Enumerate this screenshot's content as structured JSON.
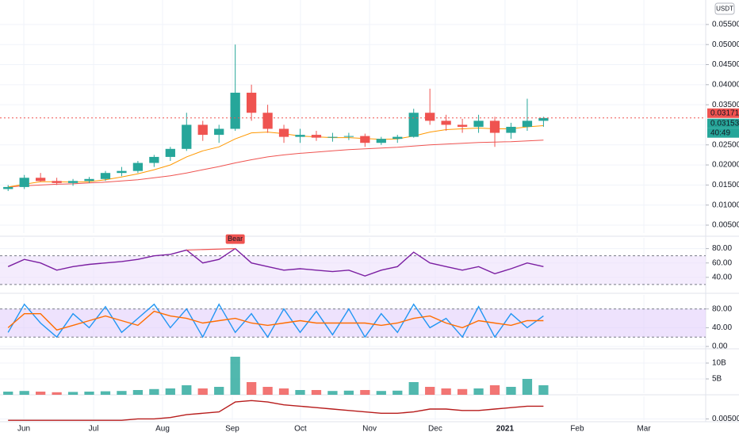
{
  "chart_data": [
    {
      "type": "candlestick",
      "unit": "USDT",
      "open": [
        0.014,
        0.0145,
        0.0168,
        0.016,
        0.0155,
        0.016,
        0.0165,
        0.018,
        0.0185,
        0.0205,
        0.022,
        0.024,
        0.03,
        0.0275,
        0.029,
        0.038,
        0.033,
        0.029,
        0.027,
        0.0275,
        0.0268,
        0.027,
        0.0272,
        0.0255,
        0.0265,
        0.027,
        0.033,
        0.031,
        0.03,
        0.0295,
        0.031,
        0.028,
        0.0295,
        0.031
      ],
      "high": [
        0.015,
        0.0175,
        0.018,
        0.0168,
        0.0165,
        0.017,
        0.0185,
        0.0195,
        0.021,
        0.0225,
        0.0245,
        0.033,
        0.031,
        0.03,
        0.05,
        0.04,
        0.035,
        0.03,
        0.029,
        0.0285,
        0.028,
        0.028,
        0.0278,
        0.027,
        0.0275,
        0.034,
        0.039,
        0.0325,
        0.0315,
        0.0325,
        0.032,
        0.0305,
        0.0365,
        0.032
      ],
      "low": [
        0.0135,
        0.014,
        0.0158,
        0.015,
        0.0148,
        0.0155,
        0.016,
        0.0172,
        0.018,
        0.0195,
        0.021,
        0.0235,
        0.026,
        0.0255,
        0.0285,
        0.031,
        0.028,
        0.0255,
        0.0255,
        0.026,
        0.0258,
        0.0262,
        0.0245,
        0.025,
        0.0255,
        0.0268,
        0.03,
        0.0285,
        0.028,
        0.028,
        0.0245,
        0.0265,
        0.0285,
        0.0295
      ],
      "close": [
        0.0145,
        0.0168,
        0.016,
        0.0155,
        0.016,
        0.0165,
        0.018,
        0.0185,
        0.0205,
        0.022,
        0.024,
        0.03,
        0.0275,
        0.029,
        0.038,
        0.033,
        0.029,
        0.027,
        0.0275,
        0.0268,
        0.027,
        0.0272,
        0.0255,
        0.0265,
        0.027,
        0.033,
        0.031,
        0.03,
        0.0295,
        0.031,
        0.028,
        0.0295,
        0.031,
        0.0317
      ],
      "up_color": "#26a69a",
      "down_color": "#ef5350",
      "ma": [
        {
          "color": "#ef5350",
          "values": [
            0.0145,
            0.0148,
            0.015,
            0.0152,
            0.0153,
            0.0155,
            0.0157,
            0.016,
            0.0163,
            0.0168,
            0.0173,
            0.018,
            0.0188,
            0.0196,
            0.0205,
            0.0213,
            0.022,
            0.0225,
            0.0229,
            0.0232,
            0.0235,
            0.0238,
            0.024,
            0.0242,
            0.0244,
            0.0247,
            0.025,
            0.0252,
            0.0254,
            0.0256,
            0.0257,
            0.0258,
            0.026,
            0.0262
          ]
        },
        {
          "color": "#ff9800",
          "values": [
            0.0145,
            0.0152,
            0.0158,
            0.0158,
            0.0157,
            0.0158,
            0.0163,
            0.017,
            0.0178,
            0.0188,
            0.02,
            0.022,
            0.0235,
            0.0245,
            0.0265,
            0.028,
            0.0282,
            0.0278,
            0.0272,
            0.027,
            0.0268,
            0.0268,
            0.0266,
            0.0264,
            0.0265,
            0.0272,
            0.0282,
            0.0288,
            0.029,
            0.0292,
            0.029,
            0.029,
            0.0295,
            0.0298
          ]
        }
      ],
      "xlim": [
        -0.5,
        43
      ],
      "xticks": [
        {
          "value": 0.97,
          "label": "Jun"
        },
        {
          "value": 5.27,
          "label": "Jul"
        },
        {
          "value": 9.52,
          "label": "Aug"
        },
        {
          "value": 13.82,
          "label": "Sep"
        },
        {
          "value": 18.02,
          "label": "Oct"
        },
        {
          "value": 22.28,
          "label": "Nov"
        },
        {
          "value": 26.33,
          "label": "Dec"
        },
        {
          "value": 30.63,
          "label": "2021"
        },
        {
          "value": 35.08,
          "label": "Feb"
        },
        {
          "value": 39.19,
          "label": "Mar"
        }
      ],
      "ylim": [
        0.00263,
        0.0611
      ],
      "yticks": [
        {
          "value": 0.055,
          "label": "0.05500"
        },
        {
          "value": 0.05,
          "label": "0.05000"
        },
        {
          "value": 0.045,
          "label": "0.04500"
        },
        {
          "value": 0.04,
          "label": "0.04000"
        },
        {
          "value": 0.035,
          "label": "0.03500"
        },
        {
          "value": 0.025,
          "label": "0.02500"
        },
        {
          "value": 0.02,
          "label": "0.02000"
        },
        {
          "value": 0.015,
          "label": "0.01500"
        },
        {
          "value": 0.01,
          "label": "0.01000"
        },
        {
          "value": 0.005,
          "label": "0.00500"
        }
      ],
      "price_labels": [
        {
          "value": 0.03171,
          "label": "0.03171",
          "color": "#ef5350"
        },
        {
          "value": 0.03153,
          "label": "0.03153",
          "color": "#26a69a"
        }
      ],
      "countdown": "40:49"
    },
    {
      "type": "line",
      "annotation": "Bear",
      "band": [
        30,
        70
      ],
      "band_color": "#ede0fb",
      "series": [
        {
          "color": "#7b1fa2",
          "values": [
            55,
            65,
            60,
            50,
            55,
            58,
            60,
            62,
            65,
            70,
            72,
            78,
            60,
            65,
            80,
            60,
            55,
            50,
            52,
            50,
            48,
            50,
            42,
            50,
            55,
            75,
            60,
            55,
            50,
            55,
            45,
            52,
            60,
            55
          ]
        }
      ],
      "ylim": [
        20,
        95
      ],
      "yticks": [
        {
          "value": 80,
          "label": "80.00"
        },
        {
          "value": 60,
          "label": "60.00"
        },
        {
          "value": 40,
          "label": "40.00"
        }
      ]
    },
    {
      "type": "line",
      "band": [
        20,
        80
      ],
      "band_color": "#e3cffb",
      "series": [
        {
          "color": "#2196f3",
          "values": [
            30,
            90,
            50,
            20,
            70,
            40,
            85,
            30,
            60,
            90,
            40,
            80,
            20,
            90,
            30,
            70,
            20,
            80,
            30,
            75,
            25,
            80,
            20,
            70,
            30,
            90,
            40,
            60,
            20,
            85,
            20,
            70,
            40,
            65
          ]
        },
        {
          "color": "#ff6d00",
          "values": [
            40,
            70,
            70,
            35,
            45,
            55,
            65,
            55,
            45,
            75,
            65,
            60,
            50,
            55,
            60,
            50,
            45,
            50,
            55,
            50,
            50,
            50,
            50,
            45,
            50,
            60,
            65,
            50,
            40,
            55,
            50,
            45,
            55,
            55
          ]
        }
      ],
      "ylim": [
        -5,
        110
      ],
      "yticks": [
        {
          "value": 80,
          "label": "80.00"
        },
        {
          "value": 40,
          "label": "40.00"
        },
        {
          "value": 0,
          "label": "0.00"
        }
      ]
    },
    {
      "type": "bar",
      "values": [
        1000000000,
        1200000000,
        1000000000,
        800000000,
        900000000,
        1000000000,
        1100000000,
        1200000000,
        1500000000,
        1800000000,
        2000000000,
        3000000000,
        2000000000,
        2500000000,
        12000000000,
        4000000000,
        2500000000,
        2000000000,
        1500000000,
        1500000000,
        1200000000,
        1300000000,
        1500000000,
        1200000000,
        1300000000,
        4000000000,
        2500000000,
        2000000000,
        1800000000,
        2000000000,
        3000000000,
        2500000000,
        5000000000,
        3000000000
      ],
      "ylim": [
        0,
        14000000000
      ],
      "yticks": [
        {
          "value": 10000000000,
          "label": "10B"
        },
        {
          "value": 5000000000,
          "label": "5B"
        }
      ]
    },
    {
      "type": "line",
      "series": [
        {
          "color": "#b71c1c",
          "values": [
            0.0049,
            0.0049,
            0.0049,
            0.0049,
            0.0049,
            0.0049,
            0.0049,
            0.0049,
            0.005,
            0.005,
            0.0051,
            0.0053,
            0.0054,
            0.0055,
            0.0062,
            0.0063,
            0.0062,
            0.006,
            0.0059,
            0.0058,
            0.0057,
            0.0056,
            0.0055,
            0.0054,
            0.0054,
            0.0055,
            0.0057,
            0.0057,
            0.0056,
            0.0056,
            0.0057,
            0.0058,
            0.0059,
            0.0059
          ]
        }
      ],
      "ylim": [
        0.0048,
        0.0066
      ],
      "yticks": [
        {
          "value": 0.005,
          "label": "0.00500"
        }
      ]
    }
  ]
}
